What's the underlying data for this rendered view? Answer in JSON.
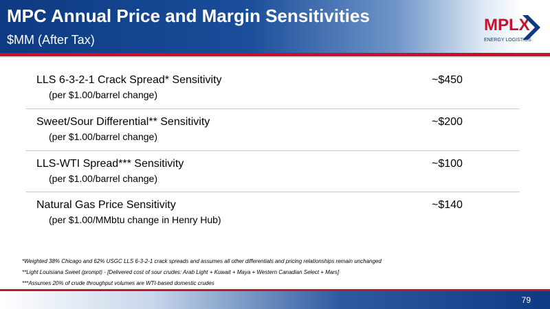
{
  "header": {
    "title": "MPC Annual Price and Margin Sensitivities",
    "subtitle": "$MM (After Tax)"
  },
  "logo": {
    "text": "MPLX",
    "tagline": "ENERGY LOGISTICS",
    "colors": {
      "red": "#c8102e",
      "blue": "#0d3a82"
    }
  },
  "rows": [
    {
      "label": "LLS 6-3-2-1 Crack Spread* Sensitivity",
      "note": "(per $1.00/barrel change)",
      "value": "~$450"
    },
    {
      "label": "Sweet/Sour Differential** Sensitivity",
      "note": "(per $1.00/barrel change)",
      "value": "~$200"
    },
    {
      "label": "LLS-WTI Spread*** Sensitivity",
      "note": "(per $1.00/barrel change)",
      "value": "~$100"
    },
    {
      "label": "Natural Gas Price Sensitivity",
      "note": "(per $1.00/MMbtu change in Henry Hub)",
      "value": "~$140"
    }
  ],
  "footnotes": [
    "*Weighted 38% Chicago and 62% USGC LLS 6-3-2-1 crack spreads and assumes all other differentials and pricing relationships remain unchanged",
    "**Light Louisiana Sweet (prompt) - [Delivered cost of sour crudes: Arab Light + Kuwait + Maya + Western Canadian Select + Mars]",
    "***Assumes 20% of crude throughput volumes are WTI-based domestic crudes"
  ],
  "page_number": "79",
  "colors": {
    "brand_blue": "#0d3a82",
    "accent_red": "#c8102e",
    "text": "#000000"
  }
}
